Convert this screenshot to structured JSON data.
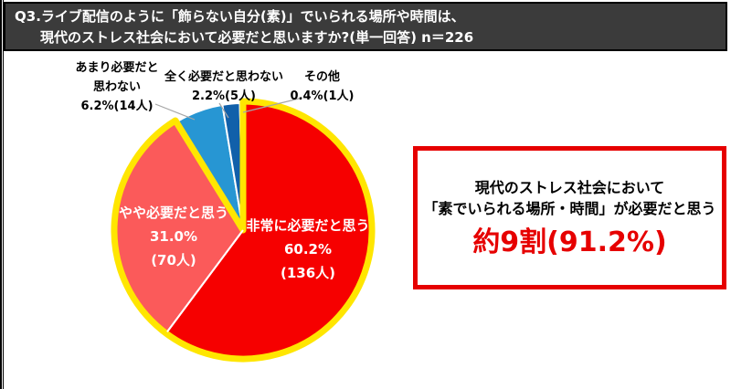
{
  "title": {
    "line1": "Q3.ライブ配信のように「飾らない自分(素)」でいられる場所や時間は、",
    "line2": "現代のストレス社会において必要だと思いますか?(単一回答) n＝226"
  },
  "chart_data": {
    "type": "pie",
    "n": 226,
    "start_angle_deg": 0,
    "direction": "clockwise",
    "outline_color": "#ffe600",
    "slice_border_color": "#ffffff",
    "leader_line_color": "#a6a6a6",
    "slices": [
      {
        "label": "非常に必要だと思う",
        "pct": 60.2,
        "count": 136,
        "pct_text": "60.2%",
        "count_text": "(136人)",
        "color": "#f60000",
        "highlighted": true,
        "label_position": "inside"
      },
      {
        "label": "やや必要だと思う",
        "pct": 31.0,
        "count": 70,
        "pct_text": "31.0%",
        "count_text": "(70人)",
        "color": "#fb5a5a",
        "highlighted": true,
        "label_position": "inside"
      },
      {
        "label": "あまり必要だと思わない",
        "pct": 6.2,
        "count": 14,
        "label_lines": [
          "あまり必要だと",
          "思わない"
        ],
        "value_text": "6.2%(14人)",
        "color": "#2796d3",
        "highlighted": false,
        "label_position": "outside"
      },
      {
        "label": "全く必要だと思わない",
        "pct": 2.2,
        "count": 5,
        "label_lines": [
          "全く必要だと思わない"
        ],
        "value_text": "2.2%(5人)",
        "color": "#1160aa",
        "highlighted": false,
        "label_position": "outside"
      },
      {
        "label": "その他",
        "pct": 0.4,
        "count": 1,
        "label_lines": [
          "その他"
        ],
        "value_text": "0.4%(1人)",
        "color": "#203a64",
        "highlighted": false,
        "label_position": "outside"
      }
    ]
  },
  "callout": {
    "line1": "現代のストレス社会において",
    "line2": "「素でいられる場所・時間」が必要だと思う",
    "highlight": "約9割(91.2%)",
    "border_color": "#e60000",
    "highlight_color": "#e60000"
  }
}
